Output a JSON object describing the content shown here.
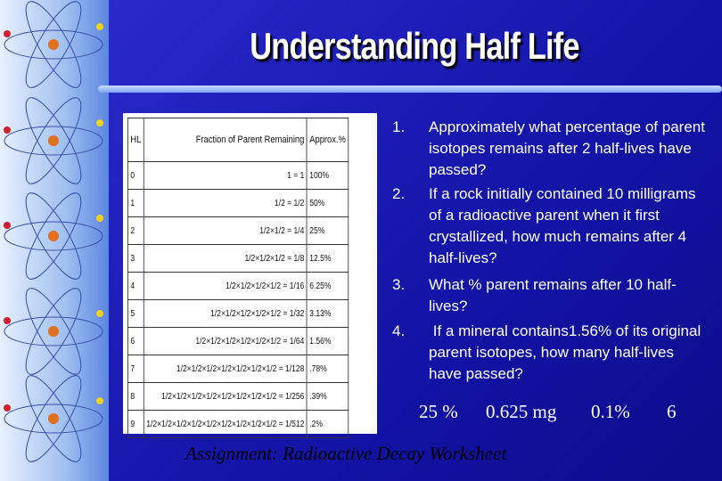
{
  "slide": {
    "title": "Understanding Half Life",
    "table": {
      "header": [
        "HL",
        "Fraction of Parent Remaining",
        "Approx.%"
      ],
      "rows": [
        [
          "0",
          "1 = 1",
          "100%"
        ],
        [
          "1",
          "1/2 = 1/2",
          "50%"
        ],
        [
          "2",
          "1/2×1/2 = 1/4",
          "25%"
        ],
        [
          "3",
          "1/2×1/2×1/2 = 1/8",
          "12.5%"
        ],
        [
          "4",
          "1/2×1/2×1/2×1/2 = 1/16",
          "6.25%"
        ],
        [
          "5",
          "1/2×1/2×1/2×1/2×1/2 = 1/32",
          "3.13%"
        ],
        [
          "6",
          "1/2×1/2×1/2×1/2×1/2×1/2 = 1/64",
          "1.56%"
        ],
        [
          "7",
          "1/2×1/2×1/2×1/2×1/2×1/2×1/2 = 1/128",
          ".78%"
        ],
        [
          "8",
          "1/2×1/2×1/2×1/2×1/2×1/2×1/2×1/2 = 1/256",
          ".39%"
        ],
        [
          "9",
          "1/2×1/2×1/2×1/2×1/2×1/2×1/2×1/2×1/2 = 1/512",
          ".2%"
        ]
      ]
    },
    "questions": [
      {
        "number": "1.",
        "text": "Approximately what percentage of parent isotopes remains after 2 half-lives have passed?"
      },
      {
        "number": "2.",
        "text": "If a rock initially contained 10 milligrams of a radioactive parent when it first crystallized, how much remains after 4 half-lives?"
      },
      {
        "number": "3.",
        "text": "What % parent remains after 10 half-lives?"
      },
      {
        "number": "4.",
        "text": " If a mineral contains1.56% of its original parent isotopes, how many half-lives have passed?"
      }
    ],
    "answers": [
      "25 %",
      "0.625 mg",
      "0.1%",
      "6"
    ],
    "assignment": "Assignment:  Radioactive Decay Worksheet"
  }
}
